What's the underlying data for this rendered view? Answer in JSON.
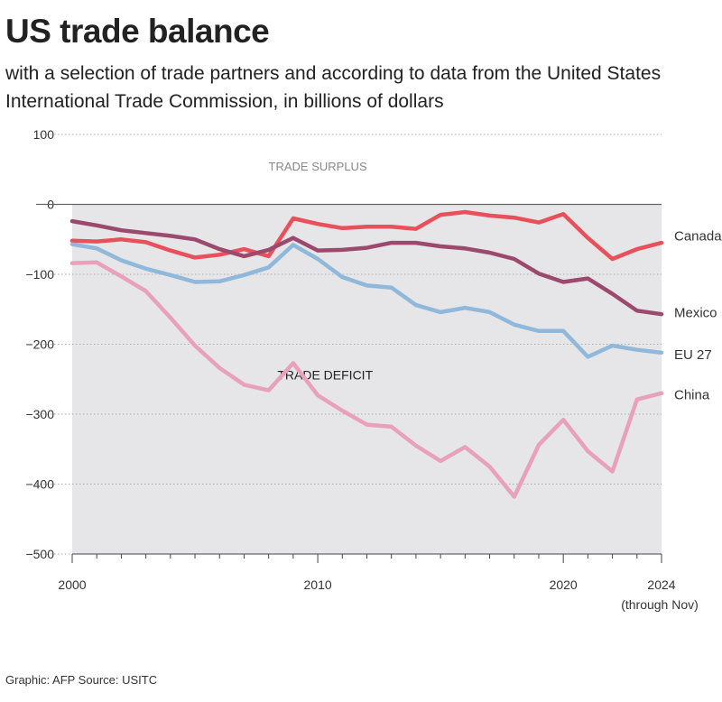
{
  "title": "US trade balance",
  "subtitle": "with a selection of trade partners and according to data from the United States International Trade Commission, in billions of dollars",
  "footer": "Graphic: AFP   Source: USITC",
  "chart_data": {
    "type": "line",
    "title": "US trade balance",
    "ylim": [
      -500,
      100
    ],
    "xlim": [
      2000,
      2024
    ],
    "yticks": [
      100,
      0,
      -100,
      -200,
      -300,
      -400,
      -500
    ],
    "ytick_labels": [
      "100",
      "0",
      "−100",
      "−200",
      "−300",
      "−400",
      "−500"
    ],
    "xticks": [
      2000,
      2010,
      2020,
      2024
    ],
    "xtick_labels": [
      "2000",
      "2010",
      "2020",
      "2024"
    ],
    "xtick_note": "(through Nov)",
    "grid": true,
    "annotations": {
      "surplus": "TRADE SURPLUS",
      "deficit": "TRADE DEFICIT"
    },
    "x": [
      2000,
      2001,
      2002,
      2003,
      2004,
      2005,
      2006,
      2007,
      2008,
      2009,
      2010,
      2011,
      2012,
      2013,
      2014,
      2015,
      2016,
      2017,
      2018,
      2019,
      2020,
      2021,
      2022,
      2023,
      2024
    ],
    "series": [
      {
        "name": "Canada",
        "color": "#e8505b",
        "values": [
          -52,
          -53,
          -50,
          -54,
          -66,
          -76,
          -72,
          -64,
          -74,
          -20,
          -28,
          -34,
          -32,
          -32,
          -35,
          -15,
          -11,
          -16,
          -19,
          -26,
          -14,
          -48,
          -78,
          -64,
          -55
        ]
      },
      {
        "name": "Mexico",
        "color": "#9b4a6e",
        "values": [
          -24,
          -30,
          -37,
          -41,
          -45,
          -50,
          -64,
          -74,
          -65,
          -48,
          -66,
          -65,
          -62,
          -55,
          -55,
          -60,
          -63,
          -69,
          -78,
          -99,
          -111,
          -106,
          -128,
          -152,
          -157
        ]
      },
      {
        "name": "EU 27",
        "color": "#8fb8da",
        "values": [
          -57,
          -63,
          -80,
          -92,
          -101,
          -111,
          -110,
          -101,
          -90,
          -58,
          -78,
          -104,
          -116,
          -119,
          -144,
          -154,
          -148,
          -154,
          -172,
          -181,
          -181,
          -218,
          -202,
          -208,
          -212
        ]
      },
      {
        "name": "China",
        "color": "#e8a0bb",
        "values": [
          -84,
          -83,
          -103,
          -124,
          -162,
          -202,
          -234,
          -258,
          -266,
          -227,
          -273,
          -295,
          -315,
          -318,
          -345,
          -367,
          -347,
          -375,
          -418,
          -344,
          -308,
          -353,
          -382,
          -279,
          -270
        ]
      }
    ]
  }
}
